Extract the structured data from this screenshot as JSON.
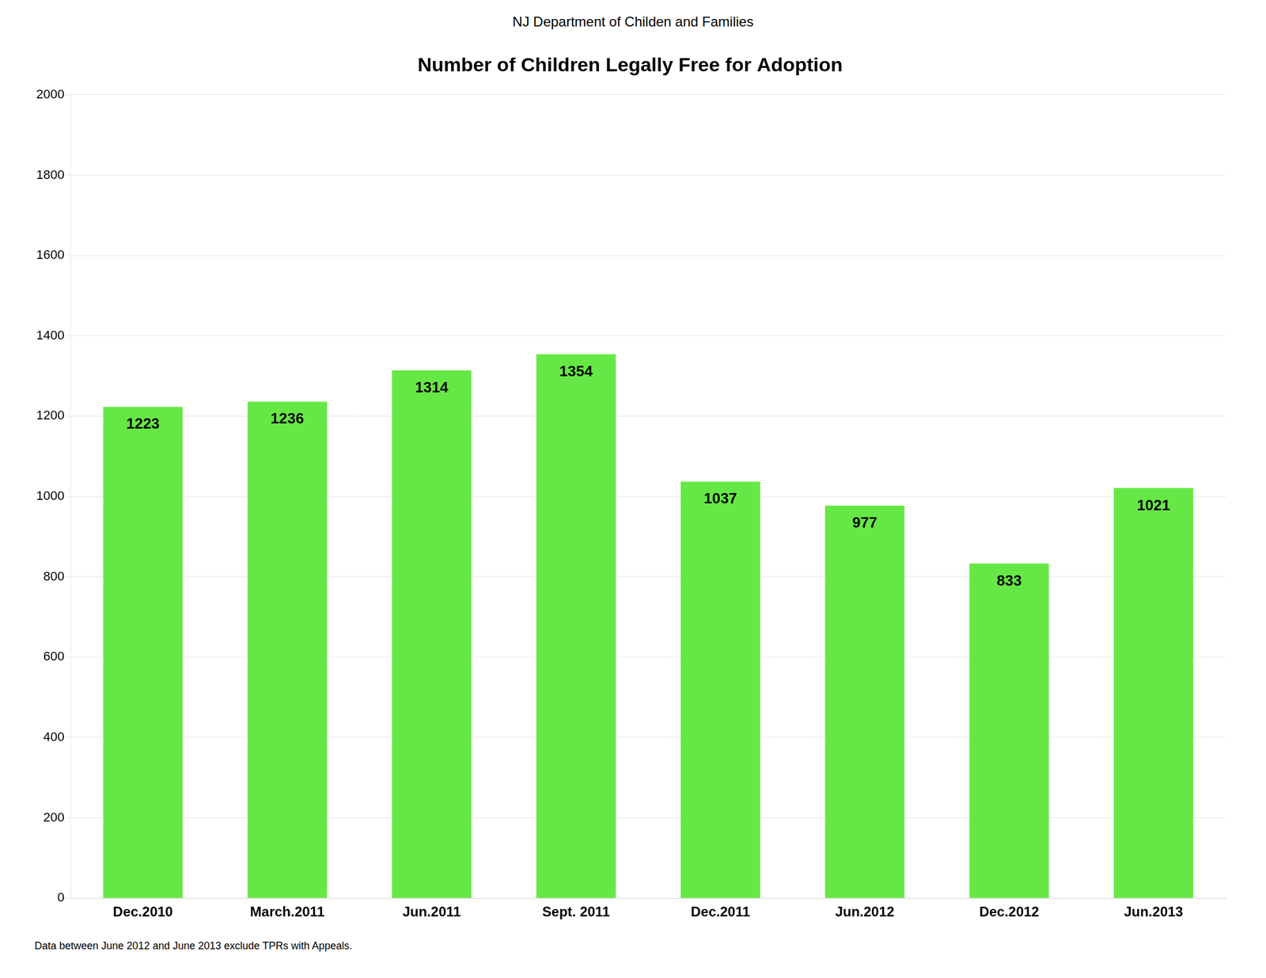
{
  "chart_data": {
    "type": "bar",
    "subtitle": "NJ Department of Childen and Families",
    "title": "Number of Children Legally Free for Adoption",
    "footnote": "Data between June 2012 and June 2013 exclude TPRs with Appeals.",
    "categories": [
      "Dec.2010",
      "March.2011",
      "Jun.2011",
      "Sept. 2011",
      "Dec.2011",
      "Jun.2012",
      "Dec.2012",
      "Jun.2013"
    ],
    "values": [
      1223,
      1236,
      1314,
      1354,
      1037,
      977,
      833,
      1021
    ],
    "color": "#65e845",
    "ylim": [
      0,
      2000
    ],
    "yticks": [
      0,
      200,
      400,
      600,
      800,
      1000,
      1200,
      1400,
      1600,
      1800,
      2000
    ],
    "grid": true,
    "data_labels": true
  }
}
